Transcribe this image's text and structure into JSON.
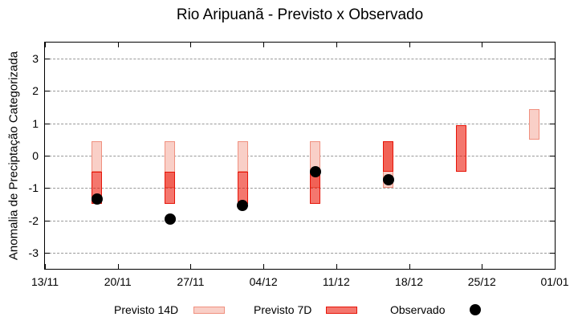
{
  "chart_data": {
    "type": "bar",
    "subtype": "forecast-range-bars-with-observed-points",
    "title": "Rio Aripuanã - Previsto x Observado",
    "ylabel": "Anomalia de Preciptação Categorizada",
    "xlabel": "",
    "ylim": [
      -3.5,
      3.5
    ],
    "yticks": [
      3,
      2,
      1,
      0,
      -1,
      -2,
      -3
    ],
    "xticks": [
      {
        "label": "13/11",
        "day": 0
      },
      {
        "label": "20/11",
        "day": 7
      },
      {
        "label": "27/11",
        "day": 14
      },
      {
        "label": "04/12",
        "day": 21
      },
      {
        "label": "11/12",
        "day": 28
      },
      {
        "label": "18/12",
        "day": 35
      },
      {
        "label": "25/12",
        "day": 42
      },
      {
        "label": "01/01",
        "day": 49
      }
    ],
    "x_axis_span_days": 49,
    "grid": "horizontal-dashed",
    "legend_position": "bottom-center",
    "series": [
      {
        "name": "Previsto 14D",
        "kind": "range-bar",
        "points": [
          {
            "date": "18/11",
            "day": 5,
            "lo": -0.5,
            "hi": 0.45
          },
          {
            "date": "25/11",
            "day": 12,
            "lo": -1.0,
            "hi": 0.45
          },
          {
            "date": "02/12",
            "day": 19,
            "lo": -0.5,
            "hi": 0.45
          },
          {
            "date": "09/12",
            "day": 26,
            "lo": -1.0,
            "hi": 0.45
          },
          {
            "date": "16/12",
            "day": 33,
            "lo": -1.0,
            "hi": 0.45
          },
          {
            "date": "30/12",
            "day": 47,
            "lo": 0.5,
            "hi": 1.45
          }
        ]
      },
      {
        "name": "Previsto 7D",
        "kind": "range-bar",
        "points": [
          {
            "date": "18/11",
            "day": 5,
            "lo": -1.5,
            "hi": -0.5
          },
          {
            "date": "25/11",
            "day": 12,
            "lo": -1.5,
            "hi": -0.5
          },
          {
            "date": "02/12",
            "day": 19,
            "lo": -1.5,
            "hi": -0.5
          },
          {
            "date": "09/12",
            "day": 26,
            "lo": -1.5,
            "hi": -0.5
          },
          {
            "date": "16/12",
            "day": 33,
            "lo": -0.5,
            "hi": 0.45
          },
          {
            "date": "23/12",
            "day": 40,
            "lo": -0.5,
            "hi": 0.95
          }
        ]
      },
      {
        "name": "Observado",
        "kind": "scatter",
        "points": [
          {
            "date": "18/11",
            "day": 5,
            "value": -1.35
          },
          {
            "date": "25/11",
            "day": 12,
            "value": -1.95
          },
          {
            "date": "02/12",
            "day": 19,
            "value": -1.55
          },
          {
            "date": "09/12",
            "day": 26,
            "value": -0.5
          },
          {
            "date": "16/12",
            "day": 33,
            "value": -0.75
          }
        ]
      }
    ],
    "colors": {
      "previsto_14d_fill": "#f9cfc7",
      "previsto_14d_border": "#f0907f",
      "previsto_7d_fill": "rgba(236,15,0,0.57)",
      "previsto_7d_fill_solid": "#f4766d",
      "previsto_7d_border": "#e61408",
      "observado": "#000000",
      "grid": "#999999",
      "axis": "#000000",
      "background": "#ffffff"
    }
  }
}
